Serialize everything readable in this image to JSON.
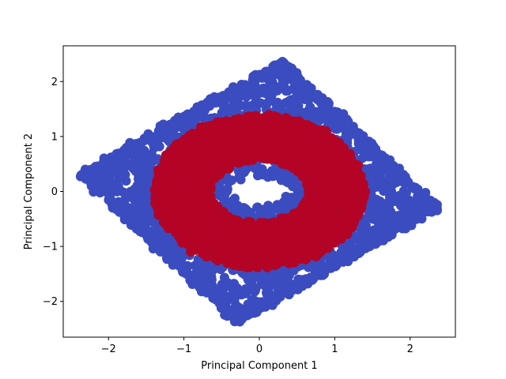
{
  "chart_data": {
    "type": "scatter",
    "title": "",
    "xlabel": "Principal Component 1",
    "ylabel": "Principal Component 2",
    "xlim": [
      -2.6,
      2.6
    ],
    "ylim": [
      -2.65,
      2.65
    ],
    "xticks": [
      -2,
      -1,
      0,
      1,
      2
    ],
    "yticks": [
      -2,
      -1,
      0,
      1,
      2
    ],
    "xtick_labels": [
      "−2",
      "−1",
      "0",
      "1",
      "2"
    ],
    "ytick_labels": [
      "−2",
      "−1",
      "0",
      "1",
      "2"
    ],
    "grid": false,
    "legend": "none",
    "series": [
      {
        "color": "#3b4cc0",
        "shape": "rotated-square-with-central-hole",
        "corners": [
          [
            0.3,
            2.38
          ],
          [
            2.38,
            -0.3
          ],
          [
            -0.3,
            -2.38
          ],
          [
            -2.38,
            0.3
          ]
        ],
        "hole": {
          "center": [
            0.0,
            0.0
          ],
          "rx": 0.35,
          "ry": 0.27
        }
      },
      {
        "color": "#b40426",
        "shape": "annulus",
        "center": [
          0.0,
          0.0
        ],
        "outer_rx": 1.38,
        "outer_ry": 1.37,
        "inner_rx": 0.36,
        "inner_ry": 0.28
      }
    ]
  }
}
